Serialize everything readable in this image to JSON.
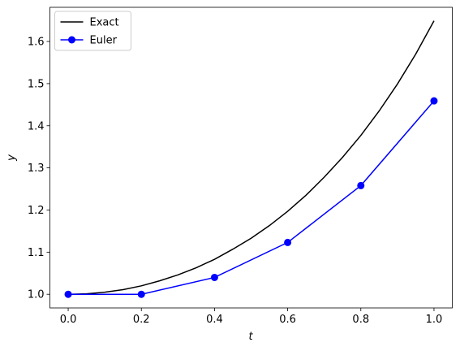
{
  "chart_data": {
    "type": "line",
    "xlabel": "t",
    "ylabel": "y",
    "xlim": [
      -0.05,
      1.05
    ],
    "ylim": [
      0.9676,
      1.6811
    ],
    "xticks": [
      {
        "value": 0,
        "label": "0.0"
      },
      0.2,
      0.4,
      0.6,
      0.8,
      {
        "value": 1,
        "label": "1.0"
      }
    ],
    "yticks": [
      {
        "value": 1,
        "label": "1.0"
      },
      1.1,
      1.2,
      1.3,
      1.4,
      1.5,
      1.6
    ],
    "grid": false,
    "legend": "upper-left",
    "series": [
      {
        "name": "Exact",
        "color": "#000000",
        "marker": false,
        "x": [
          0,
          0.05,
          0.1,
          0.15,
          0.2,
          0.25,
          0.3,
          0.35,
          0.4,
          0.45,
          0.5,
          0.55,
          0.6,
          0.65,
          0.7,
          0.75,
          0.8,
          0.85,
          0.9,
          0.95,
          1
        ],
        "values": [
          1,
          1.001,
          1.005,
          1.011,
          1.02,
          1.032,
          1.046,
          1.063,
          1.083,
          1.107,
          1.133,
          1.163,
          1.197,
          1.235,
          1.278,
          1.325,
          1.377,
          1.435,
          1.499,
          1.57,
          1.649
        ]
      },
      {
        "name": "Euler",
        "color": "#0000ff",
        "marker": true,
        "x": [
          0,
          0.2,
          0.4,
          0.6,
          0.8,
          1
        ],
        "values": [
          1,
          1,
          1.04,
          1.123,
          1.258,
          1.459
        ]
      }
    ]
  }
}
